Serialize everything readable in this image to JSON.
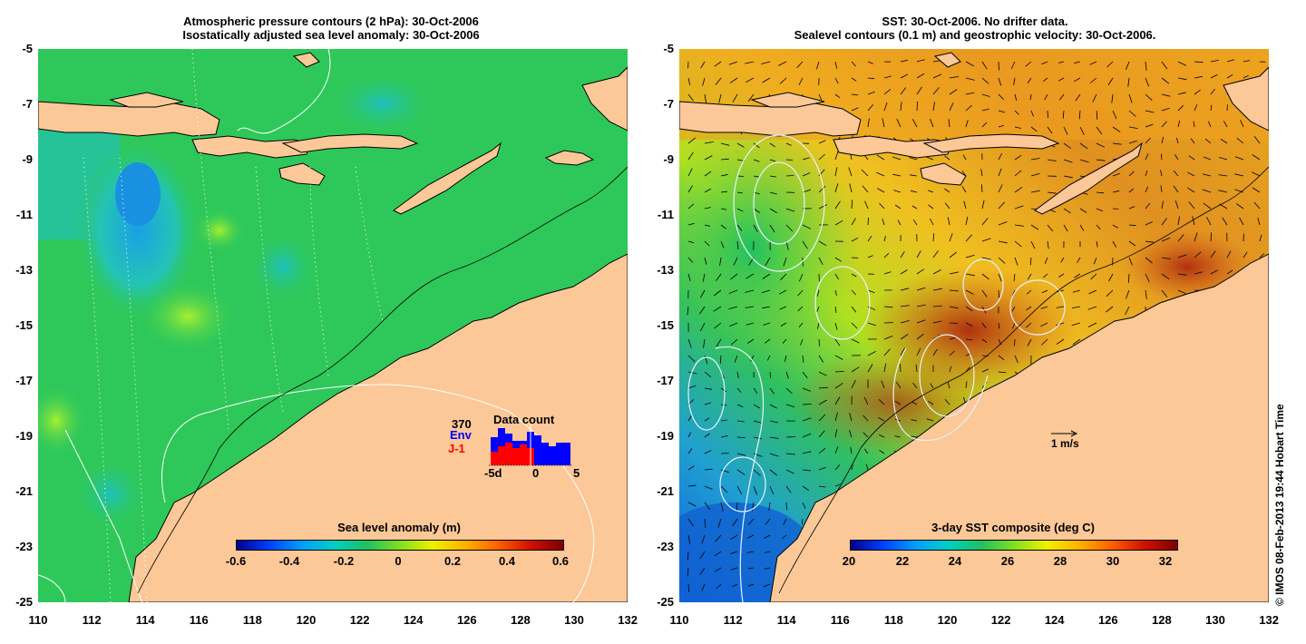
{
  "left_panel": {
    "title_line1": "Atmospheric pressure contours (2 hPa): 30-Oct-2006",
    "title_line2": "Isostatically adjusted sea level anomaly: 30-Oct-2006",
    "colorbar_title": "Sea level anomaly (m)",
    "colorbar_ticks": [
      "-0.6",
      "-0.4",
      "-0.2",
      "0",
      "0.2",
      "0.4",
      "0.6"
    ],
    "inset": {
      "count": "370",
      "env_label": "Env",
      "j1_label": "J-1",
      "title": "Data count",
      "x_ticks": [
        "-5d",
        "0",
        "5"
      ]
    }
  },
  "right_panel": {
    "title_line1": "SST: 30-Oct-2006. No drifter data.",
    "title_line2": "Sealevel contours (0.1 m) and geostrophic velocity: 30-Oct-2006.",
    "colorbar_title": "3-day SST composite (deg C)",
    "colorbar_ticks": [
      "20",
      "22",
      "24",
      "26",
      "28",
      "30",
      "32"
    ],
    "scale_label": "1 m/s"
  },
  "axes": {
    "y_ticks": [
      "-5",
      "-7",
      "-9",
      "-11",
      "-13",
      "-15",
      "-17",
      "-19",
      "-21",
      "-23",
      "-25"
    ],
    "x_ticks": [
      "110",
      "112",
      "114",
      "116",
      "118",
      "120",
      "122",
      "124",
      "126",
      "128",
      "130",
      "132"
    ]
  },
  "credit": "© IMOS 08-Feb-2013 19:44 Hobart Time",
  "colors": {
    "land": "#fcc897",
    "sla_ocean": "#2ec85a",
    "sst_warm": "#e0a020"
  }
}
